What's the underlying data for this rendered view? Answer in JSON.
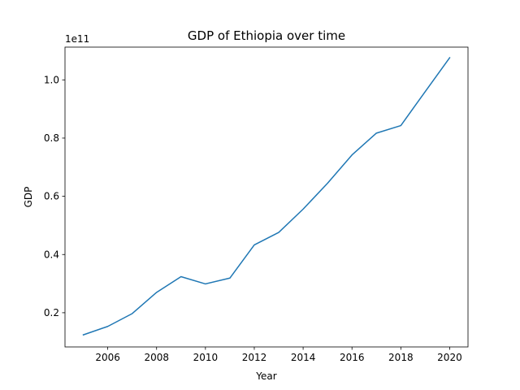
{
  "chart_data": {
    "type": "line",
    "title": "GDP of Ethiopia over time",
    "xlabel": "Year",
    "ylabel": "GDP",
    "y_offset_label": "1e11",
    "xlim": [
      2004.25,
      2020.75
    ],
    "ylim": [
      0.0825,
      1.1125
    ],
    "y_scale_factor": 100000000000.0,
    "x_ticks": [
      2006,
      2008,
      2010,
      2012,
      2014,
      2016,
      2018,
      2020
    ],
    "x_tick_labels": [
      "2006",
      "2008",
      "2010",
      "2012",
      "2014",
      "2016",
      "2018",
      "2020"
    ],
    "y_ticks": [
      0.2,
      0.4,
      0.6,
      0.8,
      1.0
    ],
    "y_tick_labels": [
      "0.2",
      "0.4",
      "0.6",
      "0.8",
      "1.0"
    ],
    "grid": false,
    "legend": null,
    "line_color": "#1f77b4",
    "series": [
      {
        "x": [
          2005,
          2006,
          2007,
          2008,
          2009,
          2010,
          2011,
          2012,
          2013,
          2014,
          2015,
          2016,
          2017,
          2018,
          2019,
          2020
        ],
        "y": [
          0.124,
          0.153,
          0.197,
          0.27,
          0.324,
          0.299,
          0.319,
          0.433,
          0.476,
          0.556,
          0.645,
          0.742,
          0.817,
          0.843,
          0.96,
          1.076
        ]
      }
    ]
  }
}
